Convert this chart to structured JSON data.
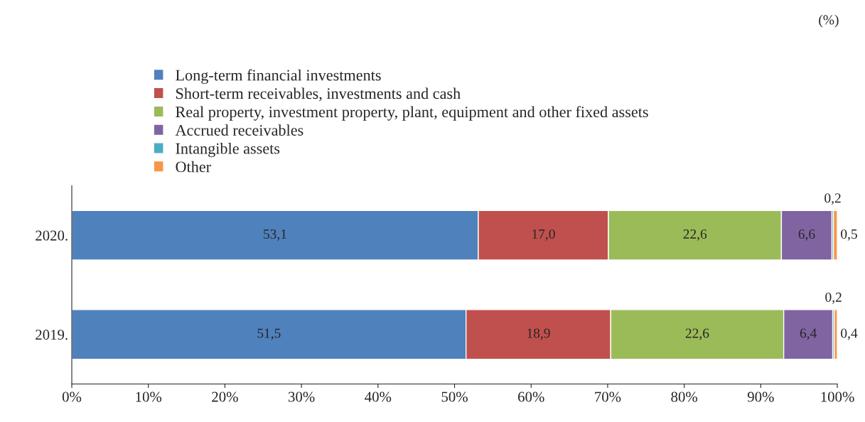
{
  "chart_data": {
    "type": "bar",
    "orientation": "horizontal",
    "stacked": true,
    "categories": [
      "2020.",
      "2019."
    ],
    "series": [
      {
        "name": "Long-term financial investments",
        "color": "#4f81bd",
        "values": [
          53.1,
          51.5
        ],
        "value_labels": [
          "53,1",
          "51,5"
        ]
      },
      {
        "name": "Short-term receivables, investments and cash",
        "color": "#c0504d",
        "values": [
          17.0,
          18.9
        ],
        "value_labels": [
          "17,0",
          "18,9"
        ]
      },
      {
        "name": "Real property, investment property, plant, equipment and other fixed assets",
        "color": "#9bbb59",
        "values": [
          22.6,
          22.6
        ],
        "value_labels": [
          "22,6",
          "22,6"
        ]
      },
      {
        "name": "Accrued receivables",
        "color": "#8064a2",
        "values": [
          6.6,
          6.4
        ],
        "value_labels": [
          "6,6",
          "6,4"
        ]
      },
      {
        "name": "Intangible assets",
        "color": "#4bacc6",
        "values": [
          0.2,
          0.2
        ],
        "value_labels": [
          "0,2",
          "0,2"
        ]
      },
      {
        "name": "Other",
        "color": "#f79646",
        "values": [
          0.5,
          0.4
        ],
        "value_labels": [
          "0,5",
          "0,4"
        ]
      }
    ],
    "xlim": [
      0,
      100
    ],
    "xticks": [
      {
        "value": 0,
        "label": "0%"
      },
      {
        "value": 10,
        "label": "10%"
      },
      {
        "value": 20,
        "label": "20%"
      },
      {
        "value": 30,
        "label": "30%"
      },
      {
        "value": 40,
        "label": "40%"
      },
      {
        "value": 50,
        "label": "50%"
      },
      {
        "value": 60,
        "label": "60%"
      },
      {
        "value": 70,
        "label": "70%"
      },
      {
        "value": 80,
        "label": "80%"
      },
      {
        "value": 90,
        "label": "90%"
      },
      {
        "value": 100,
        "label": "100%"
      }
    ],
    "annotations": [
      "(%)"
    ],
    "legend": "top",
    "grid": false
  }
}
